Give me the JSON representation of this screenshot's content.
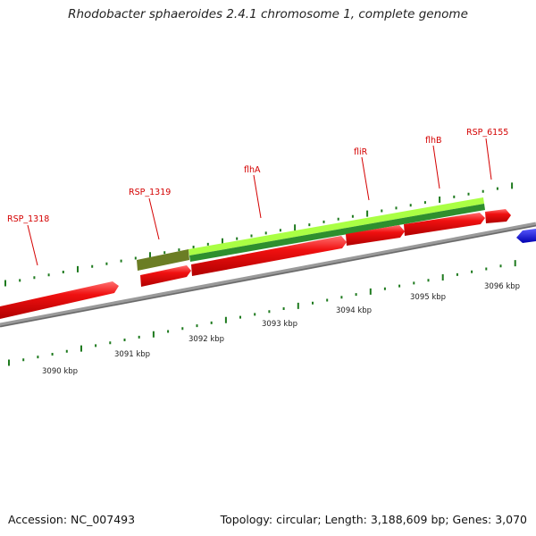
{
  "title": "Rhodobacter sphaeroides 2.4.1 chromosome 1, complete genome",
  "footer": {
    "accession": "Accession: NC_007493",
    "summary": "Topology: circular; Length: 3,188,609 bp; Genes: 3,070"
  },
  "colors": {
    "gene": "#e00000",
    "gene_highlight": "#ff6060",
    "gene_label": "#d40000",
    "cds_green_light": "#aaff44",
    "cds_green_dark": "#2e8f2e",
    "cds_olive": "#6b7d24",
    "backbone": "#8a8a8a",
    "tick": "#1e7a1e",
    "blue_feature": "#1a1aee"
  },
  "gene_labels": [
    "RSP_1318",
    "RSP_1319",
    "flhA",
    "fliR",
    "flhB",
    "RSP_6155"
  ],
  "scale_labels": [
    "3090 kbp",
    "3091 kbp",
    "3092 kbp",
    "3093 kbp",
    "3094 kbp",
    "3095 kbp",
    "3096 kbp"
  ]
}
